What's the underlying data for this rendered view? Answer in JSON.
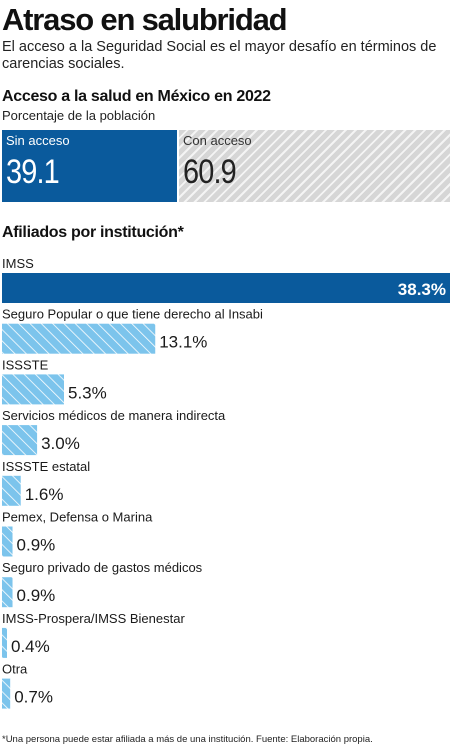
{
  "header": {
    "title": "Atraso en salubridad",
    "subtitle": "El acceso a la Seguridad Social es el mayor desafío en términos de carencias sociales."
  },
  "colors": {
    "dark_blue": "#0a5a9c",
    "light_blue": "#7cc4ec",
    "gray": "#d4d4d4"
  },
  "chart_data": [
    {
      "type": "bar",
      "title": "Acceso a la salud en México en 2022",
      "subtitle": "Porcentaje de la población",
      "categories": [
        "Sin acceso",
        "Con acceso"
      ],
      "values": [
        39.1,
        60.9
      ],
      "display_values": [
        "39.1",
        "60.9"
      ],
      "total": 100
    },
    {
      "type": "bar",
      "title": "Afiliados por institución*",
      "categories": [
        "IMSS",
        "Seguro Popular o que tiene derecho al Insabi",
        "ISSSTE",
        "Servicios médicos de manera indirecta",
        "ISSSTE estatal",
        "Pemex, Defensa o Marina",
        "Seguro privado de gastos médicos",
        "IMSS-Prospera/IMSS Bienestar",
        "Otra"
      ],
      "values": [
        38.3,
        13.1,
        5.3,
        3.0,
        1.6,
        0.9,
        0.9,
        0.4,
        0.7
      ],
      "value_labels": [
        "38.3%",
        "13.1%",
        "5.3%",
        "3.0%",
        "1.6%",
        "0.9%",
        "0.9%",
        "0.4%",
        "0.7%"
      ],
      "xlim": [
        0,
        38.3
      ]
    }
  ],
  "footnote": "*Una persona puede estar afiliada a más de una institución. Fuente: Elaboración propia."
}
